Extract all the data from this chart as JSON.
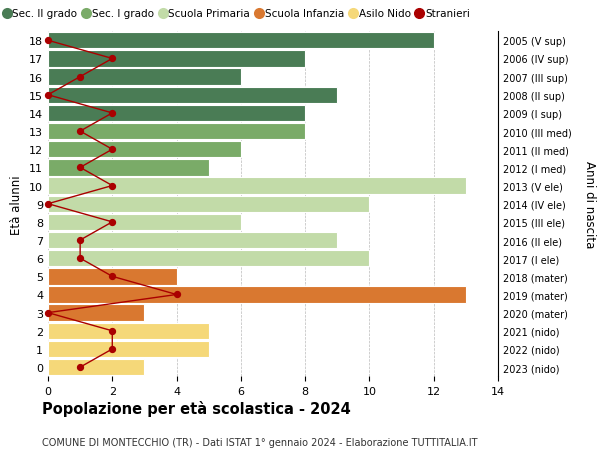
{
  "ages": [
    18,
    17,
    16,
    15,
    14,
    13,
    12,
    11,
    10,
    9,
    8,
    7,
    6,
    5,
    4,
    3,
    2,
    1,
    0
  ],
  "years": [
    "2005 (V sup)",
    "2006 (IV sup)",
    "2007 (III sup)",
    "2008 (II sup)",
    "2009 (I sup)",
    "2010 (III med)",
    "2011 (II med)",
    "2012 (I med)",
    "2013 (V ele)",
    "2014 (IV ele)",
    "2015 (III ele)",
    "2016 (II ele)",
    "2017 (I ele)",
    "2018 (mater)",
    "2019 (mater)",
    "2020 (mater)",
    "2021 (nido)",
    "2022 (nido)",
    "2023 (nido)"
  ],
  "bar_values": [
    12,
    8,
    6,
    9,
    8,
    8,
    6,
    5,
    13,
    10,
    6,
    9,
    10,
    4,
    13,
    3,
    5,
    5,
    3
  ],
  "bar_colors": [
    "#4a7c55",
    "#4a7c55",
    "#4a7c55",
    "#4a7c55",
    "#4a7c55",
    "#7aab68",
    "#7aab68",
    "#7aab68",
    "#c2dba8",
    "#c2dba8",
    "#c2dba8",
    "#c2dba8",
    "#c2dba8",
    "#d97830",
    "#d97830",
    "#d97830",
    "#f5d879",
    "#f5d879",
    "#f5d879"
  ],
  "stranieri_values": [
    0,
    2,
    1,
    0,
    2,
    1,
    2,
    1,
    2,
    0,
    2,
    1,
    1,
    2,
    4,
    0,
    2,
    2,
    1
  ],
  "stranieri_color": "#aa0000",
  "legend_labels": [
    "Sec. II grado",
    "Sec. I grado",
    "Scuola Primaria",
    "Scuola Infanzia",
    "Asilo Nido",
    "Stranieri"
  ],
  "legend_colors": [
    "#4a7c55",
    "#7aab68",
    "#c2dba8",
    "#d97830",
    "#f5d879",
    "#aa0000"
  ],
  "ylabel": "Età alunni",
  "ylabel_right": "Anni di nascita",
  "title": "Popolazione per età scolastica - 2024",
  "subtitle": "COMUNE DI MONTECCHIO (TR) - Dati ISTAT 1° gennaio 2024 - Elaborazione TUTTITALIA.IT",
  "xlim": [
    0,
    14
  ],
  "xticks": [
    0,
    2,
    4,
    6,
    8,
    10,
    12,
    14
  ],
  "bar_height": 0.9
}
